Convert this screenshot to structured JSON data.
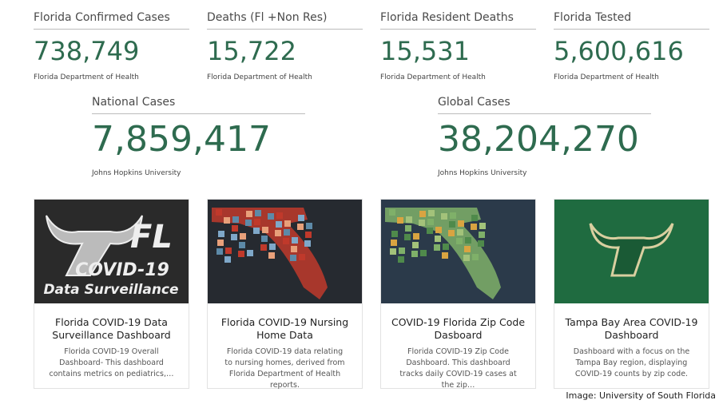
{
  "stats": [
    {
      "title": "Florida Confirmed Cases",
      "value": "738,749",
      "source": "Florida Department of Health"
    },
    {
      "title": "Deaths (Fl +Non Res)",
      "value": "15,722",
      "source": "Florida Department of Health"
    },
    {
      "title": "Florida Resident Deaths",
      "value": "15,531",
      "source": "Florida Department of Health"
    },
    {
      "title": "Florida Tested",
      "value": "5,600,616",
      "source": "Florida Department of Health"
    },
    {
      "title": "National Cases",
      "value": "7,859,417",
      "source": "Johns Hopkins University"
    },
    {
      "title": "Global Cases",
      "value": "38,204,270",
      "source": "Johns Hopkins University"
    }
  ],
  "cards": [
    {
      "image_text": [
        "FL",
        "COVID-19",
        "Data Surveillance"
      ],
      "title": "Florida COVID-19 Data Surveillance Dashboard",
      "description": "Florida COVID-19 Overall Dashboard- This dashboard contains metrics on pediatrics,…"
    },
    {
      "title": "Florida COVID-19 Nursing Home Data",
      "description": "Florida COVID-19 data relating to nursing homes, derived from Florida Department of Health reports."
    },
    {
      "title": "COVID-19 Florida Zip Code Dasboard",
      "description": "Florida COVID-19 Zip Code Dashboard. This dashboard tracks daily COVID-19 cases at the zip…"
    },
    {
      "title": "Tampa Bay Area COVID-19 Dashboard",
      "description": "Dashboard with a focus on the Tampa Bay region, displaying COVID-19 counts by zip code."
    }
  ],
  "credit": "Image: University of South Florida"
}
